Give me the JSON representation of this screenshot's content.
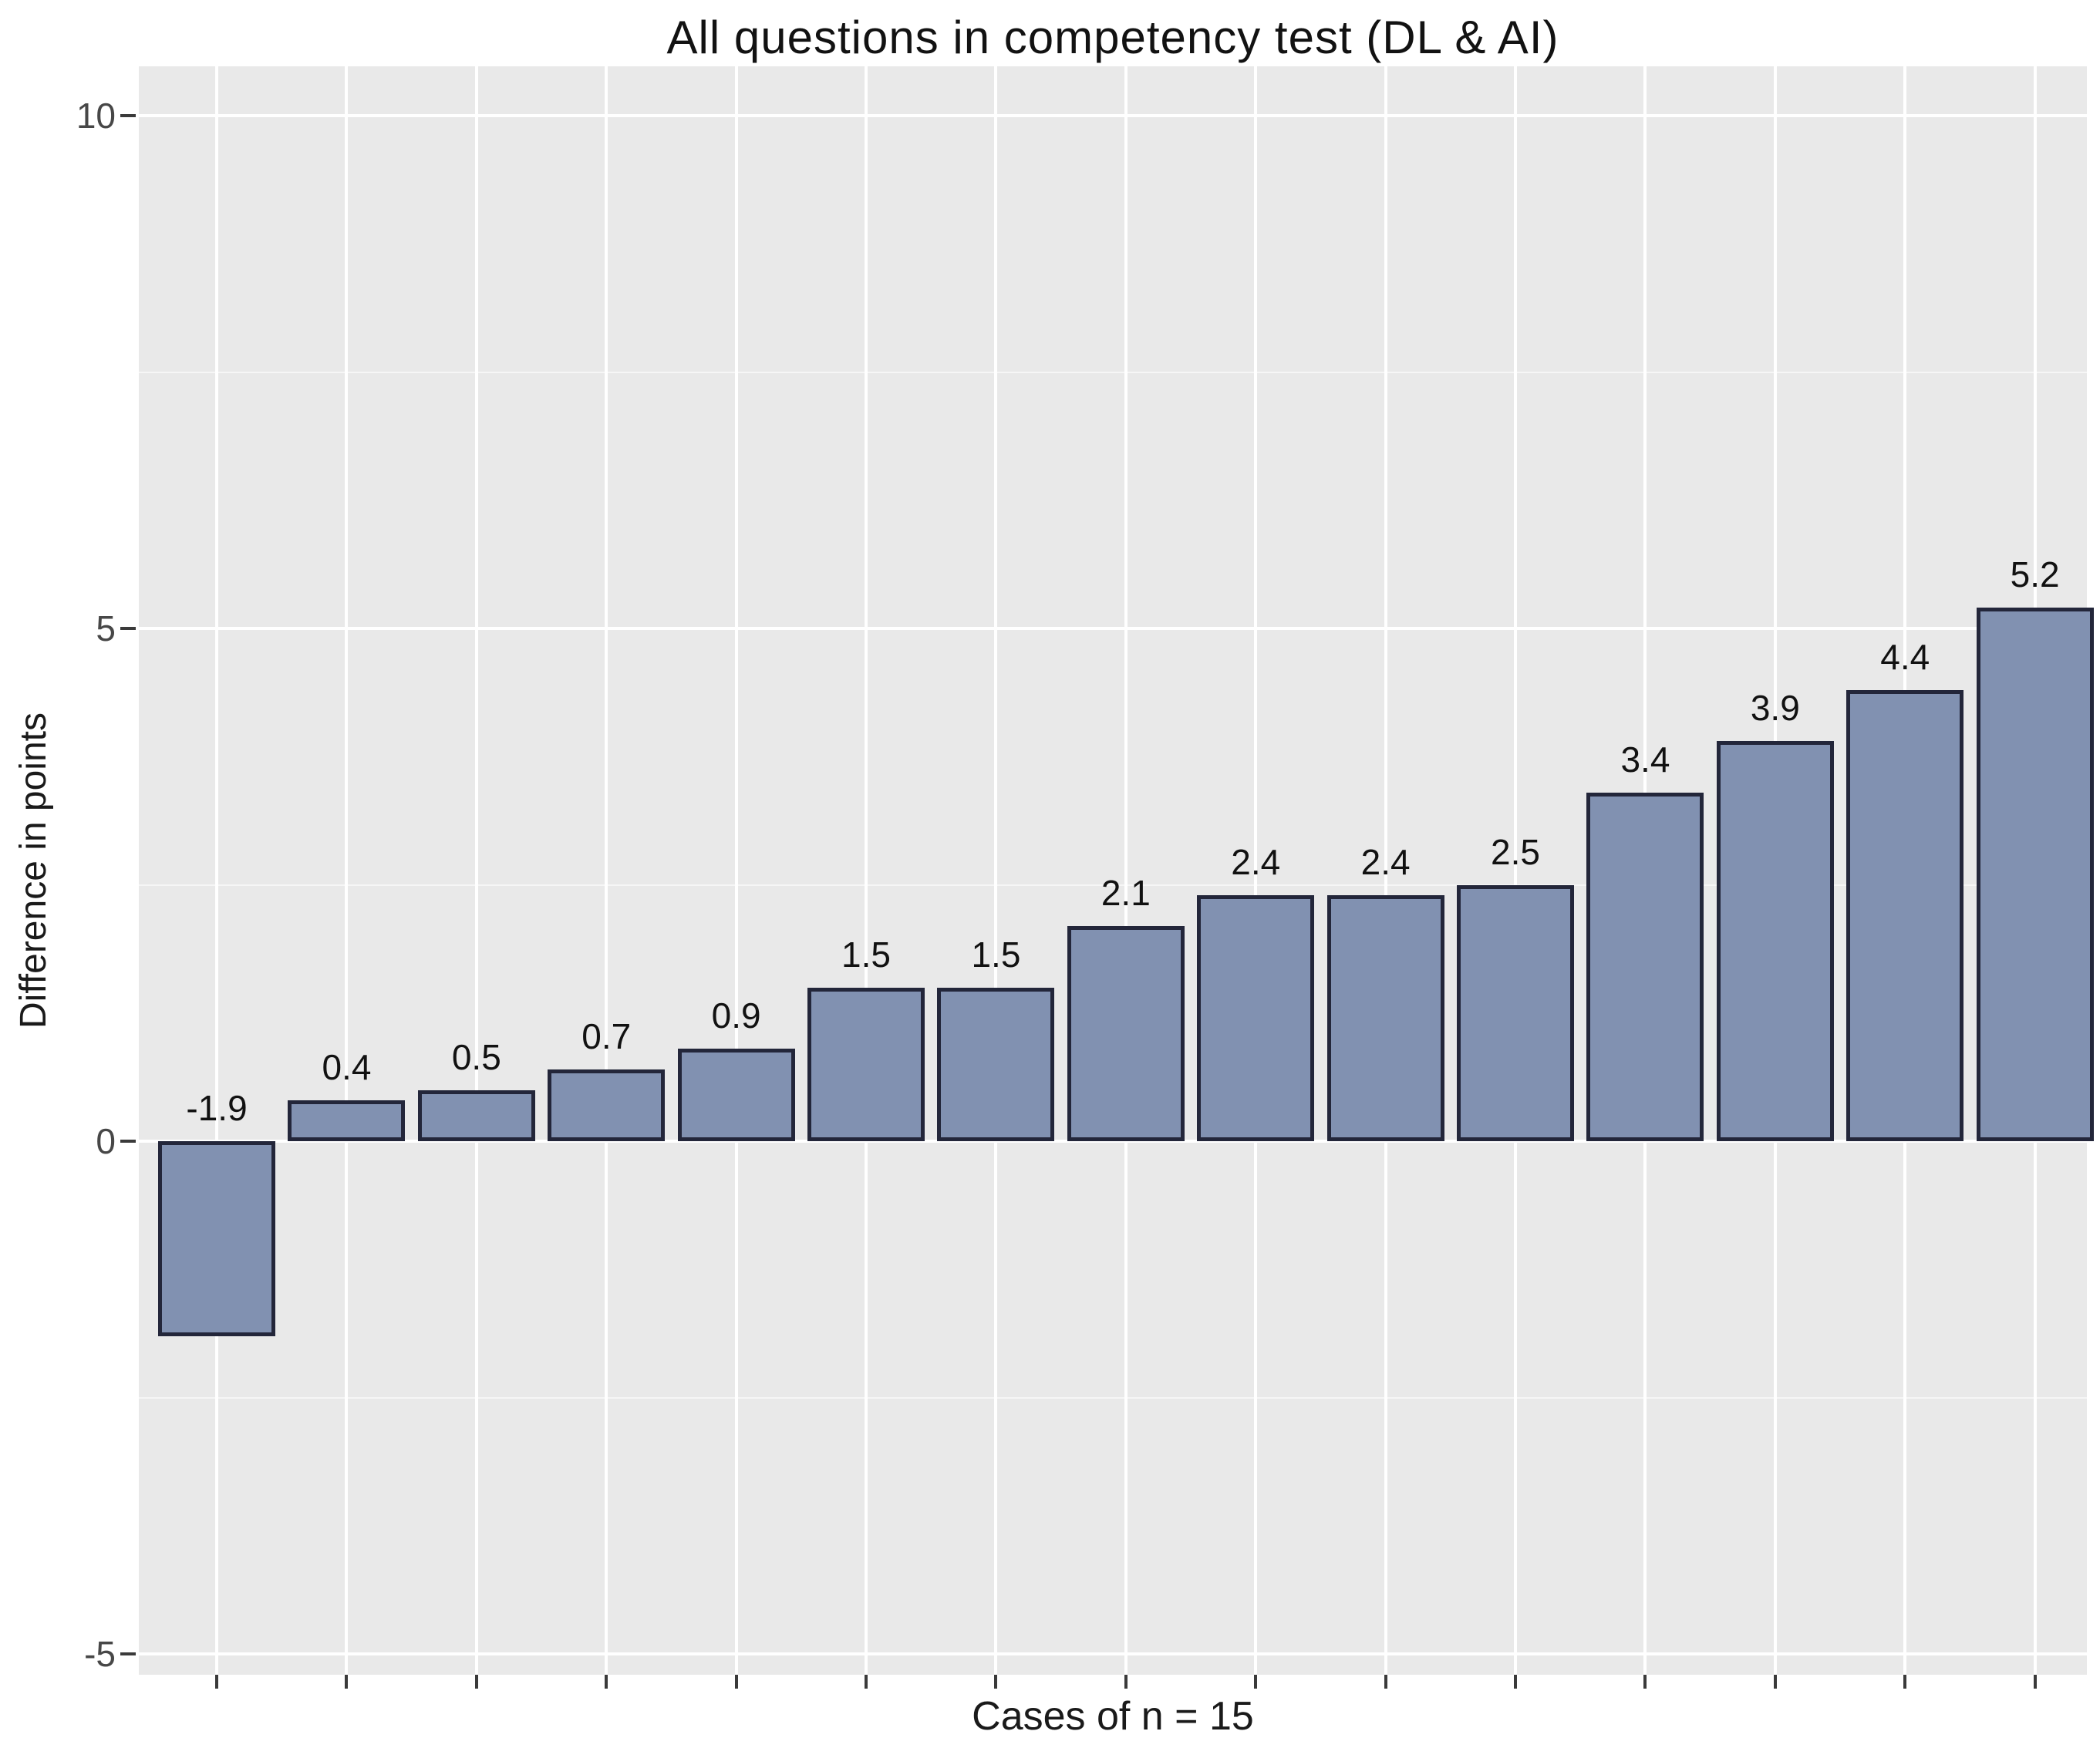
{
  "chart_data": {
    "type": "bar",
    "title": "All questions in competency test (DL & AI)",
    "xlabel": "Cases of n = 15",
    "ylabel": "Difference in points",
    "values": [
      -1.9,
      0.4,
      0.5,
      0.7,
      0.9,
      1.5,
      1.5,
      2.1,
      2.4,
      2.4,
      2.5,
      3.4,
      3.9,
      4.4,
      5.2
    ],
    "bar_labels": [
      "-1.9",
      "0.4",
      "0.5",
      "0.7",
      "0.9",
      "1.5",
      "1.5",
      "2.1",
      "2.4",
      "2.4",
      "2.5",
      "3.4",
      "3.9",
      "4.4",
      "5.2"
    ],
    "n_bars": 15,
    "yticks": [
      -5,
      0,
      5,
      10
    ],
    "ytick_labels": [
      "-5",
      "0",
      "5",
      "10"
    ],
    "minor_yticks": [
      -2.5,
      2.5,
      7.5
    ],
    "ylim": [
      -5.2,
      10.5
    ],
    "grid": true,
    "legend_position": "none",
    "colors": {
      "bar_fill": "#8191b1",
      "bar_border": "#23263a",
      "panel_background": "#e9e9e9",
      "grid_major": "#ffffff",
      "grid_minor": "#f6f6f6",
      "tick_text": "#474747",
      "text": "#111111"
    }
  }
}
